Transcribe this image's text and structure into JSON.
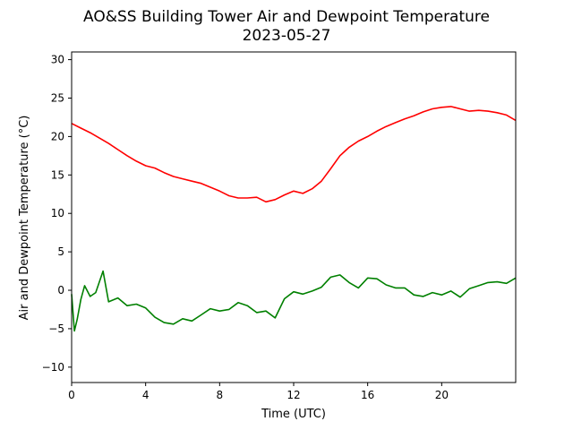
{
  "chart_data": {
    "type": "line",
    "title": "AO&SS Building Tower Air and Dewpoint Temperature",
    "subtitle": "2023-05-27",
    "xlabel": "Time (UTC)",
    "ylabel": "Air and Dewpoint Temperature (°C)",
    "xlim": [
      0,
      24
    ],
    "ylim": [
      -12,
      31
    ],
    "xticks": [
      0,
      4,
      8,
      12,
      16,
      20
    ],
    "yticks": [
      -10,
      -5,
      0,
      5,
      10,
      15,
      20,
      25,
      30
    ],
    "grid": false,
    "legend": "none",
    "series": [
      {
        "color": "#ff0000",
        "x": [
          0,
          0.5,
          1,
          1.5,
          2,
          2.5,
          3,
          3.5,
          4,
          4.5,
          5,
          5.5,
          6,
          6.5,
          7,
          7.5,
          8,
          8.5,
          9,
          9.5,
          10,
          10.5,
          11,
          11.5,
          12,
          12.5,
          13,
          13.5,
          14,
          14.5,
          15,
          15.5,
          16,
          16.5,
          17,
          17.5,
          18,
          18.5,
          19,
          19.5,
          20,
          20.5,
          21,
          21.5,
          22,
          22.5,
          23,
          23.5,
          24
        ],
        "values": [
          21.7,
          21.1,
          20.5,
          19.8,
          19.1,
          18.3,
          17.5,
          16.8,
          16.2,
          15.9,
          15.3,
          14.8,
          14.5,
          14.2,
          13.9,
          13.4,
          12.9,
          12.3,
          12.0,
          12.0,
          12.1,
          11.5,
          11.8,
          12.4,
          12.9,
          12.6,
          13.2,
          14.2,
          15.8,
          17.5,
          18.6,
          19.4,
          20.0,
          20.7,
          21.3,
          21.8,
          22.3,
          22.7,
          23.2,
          23.6,
          23.8,
          23.9,
          23.6,
          23.3,
          23.4,
          23.3,
          23.1,
          22.8,
          22.1
        ]
      },
      {
        "color": "#008000",
        "x": [
          0,
          0.15,
          0.3,
          0.5,
          0.7,
          1,
          1.3,
          1.7,
          2,
          2.5,
          3,
          3.5,
          4,
          4.5,
          5,
          5.5,
          6,
          6.5,
          7,
          7.5,
          8,
          8.5,
          9,
          9.5,
          10,
          10.5,
          11,
          11.5,
          12,
          12.5,
          13,
          13.5,
          14,
          14.5,
          15,
          15.5,
          16,
          16.5,
          17,
          17.5,
          18,
          18.5,
          19,
          19.5,
          20,
          20.5,
          21,
          21.5,
          22,
          22.5,
          23,
          23.5,
          24
        ],
        "values": [
          -0.5,
          -5.3,
          -3.8,
          -1.2,
          0.6,
          -0.8,
          -0.3,
          2.5,
          -1.5,
          -1.0,
          -2.0,
          -1.8,
          -2.3,
          -3.5,
          -4.2,
          -4.4,
          -3.7,
          -4.0,
          -3.2,
          -2.4,
          -2.7,
          -2.5,
          -1.6,
          -2.0,
          -2.9,
          -2.7,
          -3.6,
          -1.1,
          -0.2,
          -0.5,
          -0.1,
          0.4,
          1.7,
          2.0,
          1.0,
          0.3,
          1.6,
          1.5,
          0.7,
          0.3,
          0.3,
          -0.6,
          -0.8,
          -0.3,
          -0.6,
          -0.1,
          -0.9,
          0.2,
          0.6,
          1.0,
          1.1,
          0.9,
          1.6
        ]
      }
    ]
  }
}
